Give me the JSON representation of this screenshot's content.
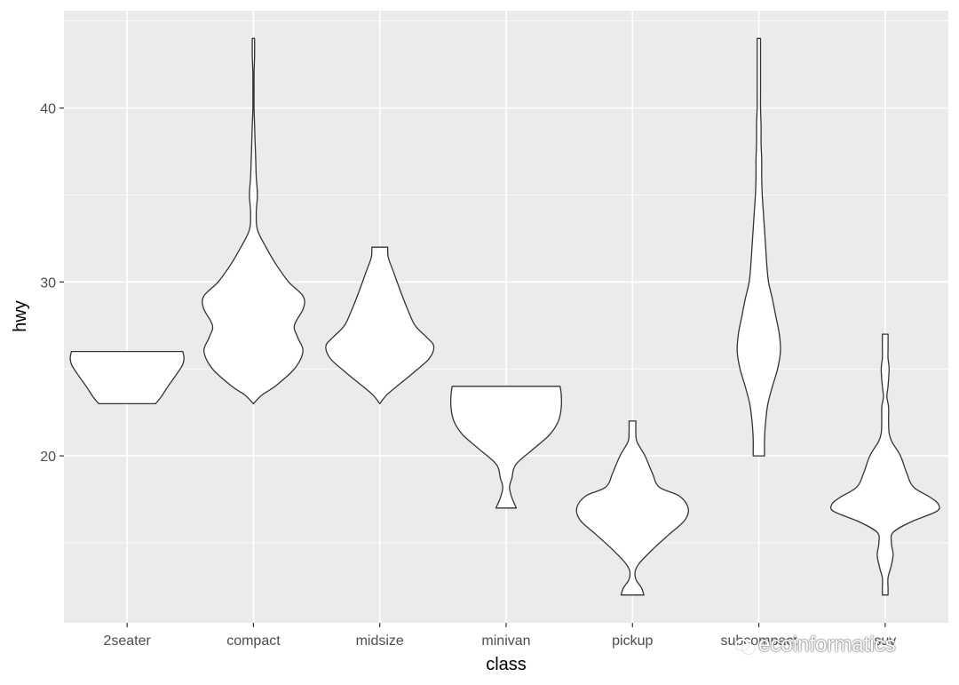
{
  "chart_data": {
    "type": "violin",
    "xlabel": "class",
    "ylabel": "hwy",
    "categories": [
      "2seater",
      "compact",
      "midsize",
      "minivan",
      "pickup",
      "subcompact",
      "suv"
    ],
    "ylim": [
      10.4,
      45.6
    ],
    "yticks": [
      20,
      30,
      40
    ],
    "grid": true,
    "legend": "none",
    "colors": {
      "panel": "#EBEBEB",
      "grid": "#FFFFFF",
      "violin_fill": "#FFFFFF",
      "violin_stroke": "#333333"
    },
    "series": [
      {
        "category": "2seater",
        "min": 23,
        "max": 26,
        "profile": [
          [
            23,
            0.5
          ],
          [
            23.4,
            0.6
          ],
          [
            24,
            0.72
          ],
          [
            24.6,
            0.85
          ],
          [
            25.2,
            0.97
          ],
          [
            25.6,
            1.0
          ],
          [
            26,
            0.98
          ]
        ]
      },
      {
        "category": "compact",
        "min": 23,
        "max": 44,
        "profile": [
          [
            23,
            0.0
          ],
          [
            23.5,
            0.15
          ],
          [
            24,
            0.38
          ],
          [
            25,
            0.72
          ],
          [
            26,
            0.87
          ],
          [
            26.8,
            0.78
          ],
          [
            27.5,
            0.72
          ],
          [
            28.5,
            0.88
          ],
          [
            29.2,
            0.87
          ],
          [
            30,
            0.62
          ],
          [
            31,
            0.4
          ],
          [
            32,
            0.22
          ],
          [
            33,
            0.07
          ],
          [
            34,
            0.05
          ],
          [
            35,
            0.07
          ],
          [
            36,
            0.05
          ],
          [
            37,
            0.04
          ],
          [
            38,
            0.03
          ],
          [
            39,
            0.02
          ],
          [
            40,
            0.01
          ],
          [
            41,
            0.01
          ],
          [
            42,
            0.01
          ],
          [
            43,
            0.02
          ],
          [
            44,
            0.02
          ]
        ]
      },
      {
        "category": "midsize",
        "min": 23,
        "max": 32,
        "profile": [
          [
            23,
            0.0
          ],
          [
            23.5,
            0.12
          ],
          [
            24,
            0.3
          ],
          [
            24.8,
            0.6
          ],
          [
            25.6,
            0.87
          ],
          [
            26.3,
            0.95
          ],
          [
            26.8,
            0.83
          ],
          [
            27.5,
            0.62
          ],
          [
            28.5,
            0.48
          ],
          [
            29.5,
            0.36
          ],
          [
            30.5,
            0.25
          ],
          [
            31.4,
            0.15
          ],
          [
            32,
            0.14
          ]
        ]
      },
      {
        "category": "minivan",
        "min": 17,
        "max": 24,
        "profile": [
          [
            17,
            0.18
          ],
          [
            17.6,
            0.1
          ],
          [
            18.2,
            0.06
          ],
          [
            18.7,
            0.1
          ],
          [
            19.5,
            0.17
          ],
          [
            20.4,
            0.48
          ],
          [
            21.2,
            0.76
          ],
          [
            22,
            0.92
          ],
          [
            22.8,
            0.97
          ],
          [
            23.5,
            0.97
          ],
          [
            24,
            0.95
          ]
        ]
      },
      {
        "category": "pickup",
        "min": 12,
        "max": 22,
        "profile": [
          [
            12,
            0.2
          ],
          [
            12.4,
            0.16
          ],
          [
            12.9,
            0.06
          ],
          [
            13.4,
            0.05
          ],
          [
            13.9,
            0.14
          ],
          [
            14.7,
            0.38
          ],
          [
            15.5,
            0.65
          ],
          [
            16.3,
            0.92
          ],
          [
            17.0,
            0.98
          ],
          [
            17.7,
            0.82
          ],
          [
            18.2,
            0.47
          ],
          [
            19,
            0.35
          ],
          [
            20,
            0.22
          ],
          [
            20.8,
            0.08
          ],
          [
            21.3,
            0.06
          ],
          [
            22,
            0.06
          ]
        ]
      },
      {
        "category": "subcompact",
        "min": 20,
        "max": 44,
        "profile": [
          [
            20,
            0.1
          ],
          [
            21,
            0.1
          ],
          [
            22,
            0.12
          ],
          [
            23,
            0.16
          ],
          [
            24,
            0.24
          ],
          [
            25,
            0.33
          ],
          [
            26,
            0.38
          ],
          [
            27,
            0.36
          ],
          [
            28,
            0.3
          ],
          [
            29,
            0.24
          ],
          [
            30,
            0.17
          ],
          [
            31,
            0.14
          ],
          [
            32,
            0.12
          ],
          [
            33,
            0.1
          ],
          [
            34,
            0.08
          ],
          [
            35,
            0.06
          ],
          [
            36,
            0.05
          ],
          [
            37,
            0.05
          ],
          [
            38,
            0.04
          ],
          [
            39,
            0.04
          ],
          [
            40,
            0.03
          ],
          [
            41,
            0.03
          ],
          [
            42,
            0.03
          ],
          [
            43,
            0.03
          ],
          [
            44,
            0.03
          ]
        ]
      },
      {
        "category": "suv",
        "min": 12,
        "max": 27,
        "profile": [
          [
            12,
            0.05
          ],
          [
            12.4,
            0.05
          ],
          [
            13,
            0.05
          ],
          [
            13.6,
            0.1
          ],
          [
            14.3,
            0.14
          ],
          [
            15,
            0.11
          ],
          [
            15.6,
            0.14
          ],
          [
            16.2,
            0.45
          ],
          [
            16.8,
            0.9
          ],
          [
            17.2,
            0.94
          ],
          [
            17.6,
            0.8
          ],
          [
            18.2,
            0.5
          ],
          [
            19,
            0.38
          ],
          [
            20,
            0.27
          ],
          [
            20.8,
            0.12
          ],
          [
            21.3,
            0.07
          ],
          [
            22,
            0.06
          ],
          [
            22.8,
            0.06
          ],
          [
            23.4,
            0.03
          ],
          [
            24,
            0.05
          ],
          [
            25,
            0.07
          ],
          [
            25.6,
            0.05
          ],
          [
            26.2,
            0.05
          ],
          [
            27,
            0.05
          ]
        ]
      }
    ]
  },
  "watermark": {
    "text": "ecoinformatics",
    "icon": "wechat-icon"
  }
}
